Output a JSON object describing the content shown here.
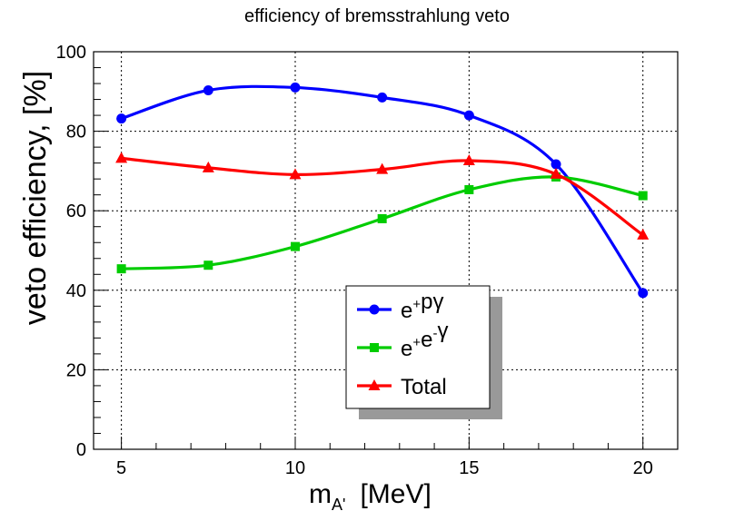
{
  "chart_data": {
    "type": "line",
    "title": "efficiency of bremsstrahlung veto",
    "ylabel": "veto efficiency, [%]",
    "xlabel": {
      "main": "m",
      "sub": "A'",
      "unit": "[MeV]"
    },
    "xlim": [
      4.2,
      21.0
    ],
    "ylim": [
      0,
      100
    ],
    "x_ticks": [
      5,
      10,
      15,
      20
    ],
    "y_ticks": [
      0,
      20,
      40,
      60,
      80,
      100
    ],
    "grid": true,
    "legend_position": "center",
    "x": [
      5,
      7.5,
      10,
      12.5,
      15,
      17.5,
      20
    ],
    "series": [
      {
        "name": "e+pγ",
        "label_parts": [
          "e",
          "+",
          "pγ"
        ],
        "marker": "circle",
        "color": "#0000ff",
        "values": [
          83.2,
          90.3,
          91.0,
          88.5,
          84.0,
          71.7,
          39.3
        ]
      },
      {
        "name": "e+e-γ",
        "label_parts": [
          "e",
          "+",
          "e",
          "-",
          "γ"
        ],
        "marker": "square",
        "color": "#00cc00",
        "values": [
          45.4,
          46.3,
          51.0,
          58.0,
          65.3,
          68.5,
          63.8
        ]
      },
      {
        "name": "Total",
        "label_parts": [
          "Total"
        ],
        "marker": "triangle",
        "color": "#ff0000",
        "values": [
          73.2,
          70.8,
          69.1,
          70.4,
          72.6,
          69.2,
          53.9
        ]
      }
    ]
  }
}
